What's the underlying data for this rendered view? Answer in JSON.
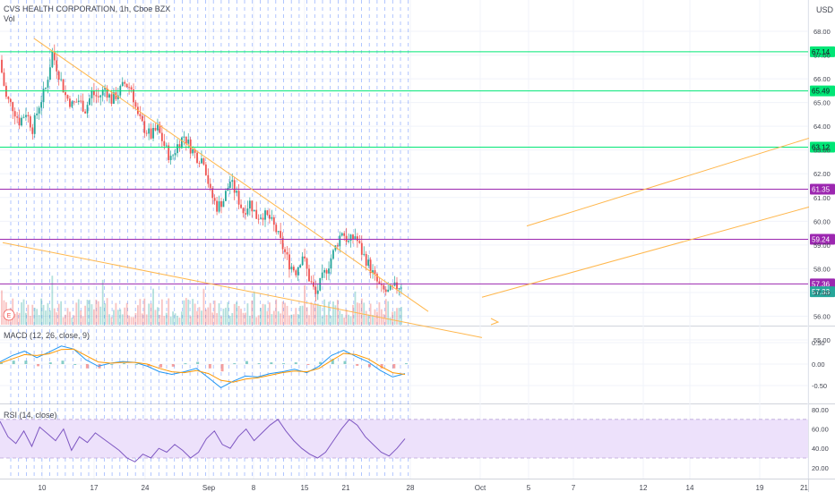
{
  "header": {
    "title": "CVS HEALTH CORPORATION, 1h, Cboe BZX",
    "volume_label": "Vol",
    "currency": "USD",
    "earnings_marker": "E"
  },
  "colors": {
    "up": "#26a69a",
    "down": "#ef5350",
    "green_level": "#00e676",
    "purple_level": "#9c27b0",
    "trendline": "#ffb74d",
    "session_line": "#2962ff",
    "macd_line": "#2196f3",
    "signal_line": "#ff9800",
    "rsi_line": "#7e57c2",
    "rsi_band": "#ede1fb",
    "axis_text": "#434651"
  },
  "chart_data": [
    {
      "type": "candlestick",
      "title": "CVS HEALTH CORPORATION, 1h, Cboe BZX",
      "y_ticks": [
        "68.00",
        "67.00",
        "66.00",
        "65.00",
        "64.00",
        "63.00",
        "62.00",
        "61.00",
        "60.00",
        "59.00",
        "58.00",
        "57.00",
        "56.00",
        "55.00"
      ],
      "x_ticks": [
        "10",
        "17",
        "24",
        "Sep",
        "8",
        "15",
        "21",
        "28",
        "Oct",
        "5",
        "7",
        "12",
        "14",
        "19",
        "21"
      ],
      "levels": [
        {
          "label": "67.14",
          "value": 67.14,
          "color": "#00e676"
        },
        {
          "label": "65.49",
          "value": 65.49,
          "color": "#00e676"
        },
        {
          "label": "63.12",
          "value": 63.12,
          "color": "#00e676"
        },
        {
          "label": "61.35",
          "value": 61.35,
          "color": "#9c27b0"
        },
        {
          "label": "59.24",
          "value": 59.24,
          "color": "#9c27b0"
        },
        {
          "label": "57.36",
          "value": 57.36,
          "color": "#9c27b0"
        }
      ],
      "last_price": {
        "label": "57.33",
        "value": 57.33
      },
      "close_path": [
        66.8,
        65.2,
        64.8,
        64.2,
        64.6,
        63.9,
        64.9,
        65.6,
        67.1,
        66.2,
        65.3,
        64.9,
        65.1,
        64.7,
        65.4,
        65.2,
        65.6,
        65.1,
        65.4,
        65.8,
        65.6,
        64.4,
        63.9,
        63.6,
        63.9,
        63.2,
        62.6,
        63.2,
        63.6,
        63.1,
        62.7,
        62.6,
        61.2,
        60.6,
        60.9,
        61.7,
        61.1,
        60.4,
        60.8,
        60.2,
        60.3,
        60.1,
        59.6,
        58.9,
        58.2,
        57.9,
        58.6,
        57.6,
        56.9,
        57.6,
        58.2,
        58.9,
        59.6,
        59.1,
        59.4,
        58.7,
        58.2,
        57.6,
        57.1,
        57.0,
        57.2,
        57.33
      ],
      "trendlines": [
        {
          "from": [
            7,
            67.7
          ],
          "to": [
            95,
            56.2
          ]
        },
        {
          "from": [
            0,
            59.1
          ],
          "to": [
            107,
            55.1
          ]
        },
        {
          "from": [
            117,
            59.8
          ],
          "to": [
            180,
            63.5
          ]
        },
        {
          "from": [
            107,
            56.8
          ],
          "to": [
            180,
            60.6
          ]
        }
      ]
    },
    {
      "type": "line",
      "title": "MACD (12, 26, close, 9)",
      "y_ticks": [
        "0.50",
        "0.00",
        "-0.50"
      ],
      "series": [
        {
          "name": "MACD",
          "values": [
            0.05,
            0.2,
            0.3,
            0.15,
            0.28,
            0.42,
            0.35,
            0.1,
            -0.05,
            0.02,
            0.06,
            0.04,
            -0.05,
            -0.18,
            -0.24,
            -0.18,
            -0.1,
            -0.32,
            -0.55,
            -0.4,
            -0.28,
            -0.3,
            -0.22,
            -0.18,
            -0.12,
            -0.2,
            -0.05,
            0.2,
            0.32,
            0.18,
            0.05,
            -0.15,
            -0.3,
            -0.22
          ]
        },
        {
          "name": "Signal",
          "values": [
            0.02,
            0.12,
            0.22,
            0.2,
            0.24,
            0.34,
            0.35,
            0.2,
            0.05,
            0.02,
            0.04,
            0.04,
            0.0,
            -0.1,
            -0.18,
            -0.2,
            -0.15,
            -0.22,
            -0.38,
            -0.42,
            -0.35,
            -0.32,
            -0.26,
            -0.2,
            -0.16,
            -0.18,
            -0.1,
            0.08,
            0.25,
            0.22,
            0.12,
            -0.05,
            -0.2,
            -0.24
          ]
        }
      ]
    },
    {
      "type": "line",
      "title": "RSI (14, close)",
      "y_ticks": [
        "80.00",
        "60.00",
        "40.00",
        "20.00"
      ],
      "band": [
        30,
        70
      ],
      "series": [
        {
          "name": "RSI",
          "values": [
            68,
            52,
            45,
            58,
            42,
            62,
            55,
            48,
            60,
            38,
            52,
            46,
            56,
            50,
            44,
            38,
            30,
            26,
            34,
            30,
            40,
            36,
            44,
            38,
            30,
            36,
            50,
            58,
            44,
            40,
            52,
            60,
            48,
            56,
            64,
            70,
            58,
            48,
            40,
            34,
            30,
            36,
            48,
            60,
            70,
            64,
            52,
            44,
            36,
            32,
            40,
            50
          ]
        }
      ]
    }
  ]
}
